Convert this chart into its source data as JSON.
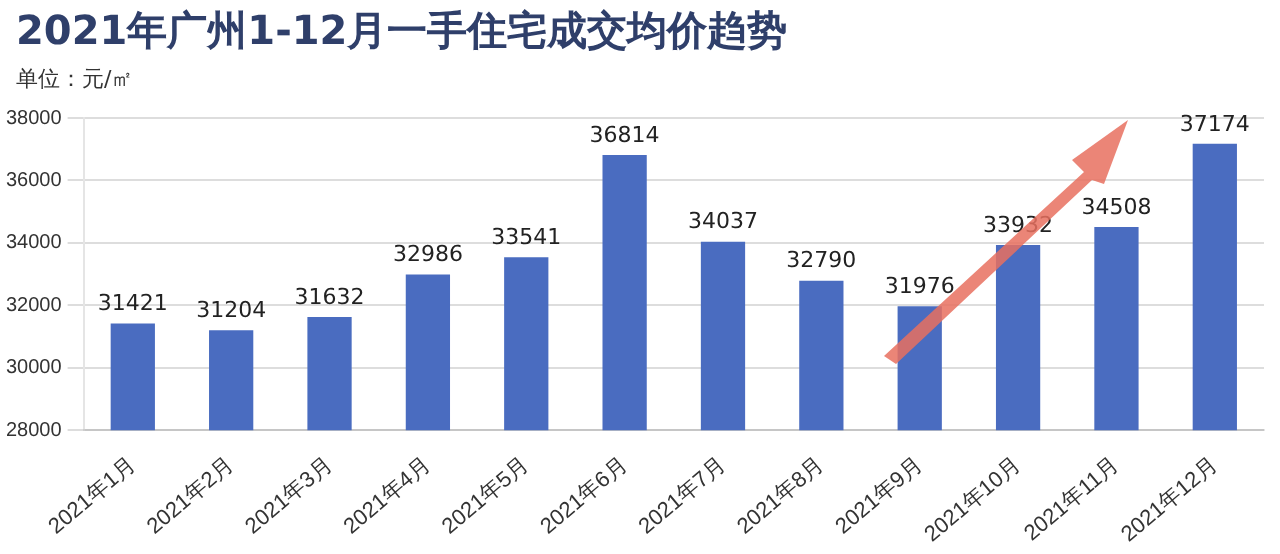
{
  "chart_data": {
    "type": "bar",
    "title": "2021年广州1-12月一手住宅成交均价趋势",
    "subtitle": "单位：元/㎡",
    "categories": [
      "2021年1月",
      "2021年2月",
      "2021年3月",
      "2021年4月",
      "2021年5月",
      "2021年6月",
      "2021年7月",
      "2021年8月",
      "2021年9月",
      "2021年10月",
      "2021年11月",
      "2021年12月"
    ],
    "values": [
      31421,
      31204,
      31632,
      32986,
      33541,
      36814,
      34037,
      32790,
      31976,
      33932,
      34508,
      37174
    ],
    "color": "#4a6cc0",
    "ylim": [
      28000,
      38000
    ],
    "yticks": [
      28000,
      30000,
      32000,
      34000,
      36000,
      38000
    ],
    "grid": "y",
    "legend": false,
    "data_labels": true
  }
}
